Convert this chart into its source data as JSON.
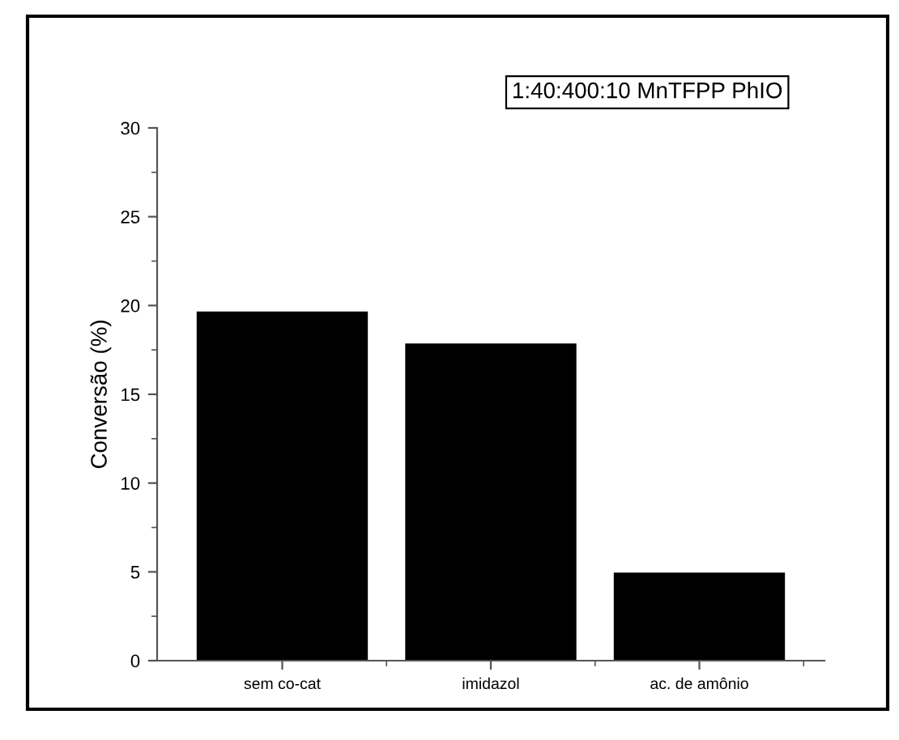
{
  "chart_data": {
    "type": "bar",
    "ylabel": "Conversão (%)",
    "categories": [
      "sem co-cat",
      "imidazol",
      "ac. de amônio"
    ],
    "values": [
      19.6,
      17.8,
      4.9
    ],
    "color": "#000000",
    "ylim": [
      0,
      30
    ],
    "yticks": [
      0,
      5,
      10,
      15,
      20,
      25,
      30
    ],
    "grid": false,
    "legend": false,
    "annotations": [
      "1:40:400:10 MnTFPP PhIO"
    ]
  }
}
